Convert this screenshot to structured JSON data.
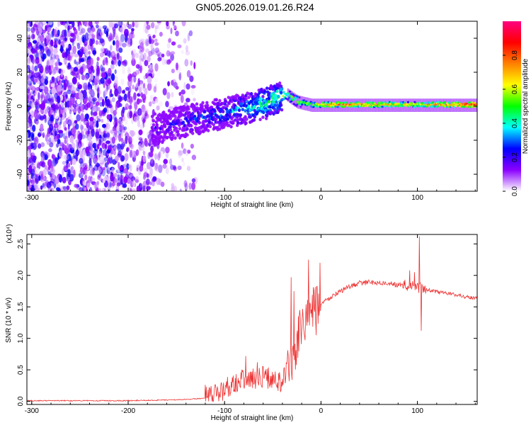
{
  "title": "GN05.2026.019.01.26.R24",
  "chart_data": [
    {
      "type": "heatmap",
      "name": "spectrogram",
      "xlabel": "Height of straight line (km)",
      "ylabel": "Frequency (Hz)",
      "xlim": [
        -305,
        162
      ],
      "ylim": [
        -50,
        50
      ],
      "xticks": [
        -300,
        -200,
        -100,
        0,
        100
      ],
      "yticks": [
        -40,
        -20,
        0,
        20,
        40
      ],
      "colorbar": {
        "label": "Normalized spectral amplitude",
        "range": [
          0.0,
          1.0
        ],
        "ticks": [
          "0.0",
          "0.2",
          "0.4",
          "0.6",
          "0.8"
        ],
        "colors": [
          "#ffffff",
          "#8b00ff",
          "#0000ff",
          "#00ffff",
          "#00ff00",
          "#ffff00",
          "#ff8000",
          "#ff0000",
          "#ff0080"
        ]
      },
      "signal_trace": {
        "height_km": [
          -175,
          -150,
          -125,
          -100,
          -75,
          -55,
          -45,
          -35,
          -25,
          -10,
          0,
          20,
          50,
          100,
          162
        ],
        "frequency_hz": [
          -14,
          -10,
          -7,
          -4,
          -1,
          2,
          5,
          7,
          3,
          1,
          1,
          1,
          1,
          1,
          1
        ],
        "amplitude": [
          0.2,
          0.25,
          0.3,
          0.35,
          0.45,
          0.5,
          0.55,
          0.5,
          0.55,
          0.6,
          0.7,
          0.75,
          0.7,
          0.65,
          0.85
        ]
      }
    },
    {
      "type": "line",
      "name": "snr",
      "xlabel": "Height of straight line (km)",
      "ylabel": "SNR (10 * v/v)",
      "scale_label": "(x10⁴)",
      "xlim": [
        -305,
        162
      ],
      "ylim": [
        -0.05,
        2.65
      ],
      "xticks": [
        -300,
        -200,
        -100,
        0,
        100
      ],
      "yticks": [
        "0.0",
        "0.5",
        "1.0",
        "1.5",
        "2.0",
        "2.5"
      ],
      "color": "#ee3333",
      "x": [
        -305,
        -250,
        -200,
        -160,
        -140,
        -120,
        -110,
        -100,
        -90,
        -80,
        -70,
        -60,
        -50,
        -40,
        -35,
        -30,
        -25,
        -20,
        -15,
        -10,
        -5,
        0,
        10,
        20,
        30,
        40,
        50,
        60,
        70,
        80,
        90,
        95,
        100,
        103,
        106,
        110,
        120,
        130,
        140,
        150,
        162
      ],
      "y": [
        0.01,
        0.01,
        0.01,
        0.02,
        0.03,
        0.05,
        0.1,
        0.2,
        0.3,
        0.35,
        0.35,
        0.4,
        0.35,
        0.3,
        0.5,
        0.6,
        0.9,
        1.2,
        1.3,
        1.45,
        1.5,
        1.55,
        1.65,
        1.75,
        1.82,
        1.88,
        1.89,
        1.88,
        1.87,
        1.85,
        1.84,
        1.82,
        1.82,
        1.8,
        1.78,
        1.77,
        1.74,
        1.72,
        1.69,
        1.66,
        1.63
      ],
      "spikes": [
        {
          "x": -31,
          "y": 1.97
        },
        {
          "x": -28,
          "y": 1.75
        },
        {
          "x": -22,
          "y": 1.45
        },
        {
          "x": -13,
          "y": 2.25
        },
        {
          "x": -5,
          "y": 1.05
        },
        {
          "x": -1,
          "y": 2.2
        },
        {
          "x": 92,
          "y": 2.08
        },
        {
          "x": 97,
          "y": 2.05
        },
        {
          "x": 102,
          "y": 2.62
        },
        {
          "x": 104,
          "y": 1.12
        },
        {
          "x": -78,
          "y": 0.72
        },
        {
          "x": -66,
          "y": 0.62
        }
      ]
    }
  ]
}
